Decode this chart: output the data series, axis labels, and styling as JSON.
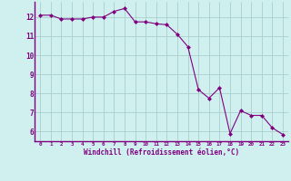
{
  "x": [
    0,
    1,
    2,
    3,
    4,
    5,
    6,
    7,
    8,
    9,
    10,
    11,
    12,
    13,
    14,
    15,
    16,
    17,
    18,
    19,
    20,
    21,
    22,
    23
  ],
  "y": [
    12.1,
    12.1,
    11.9,
    11.9,
    11.9,
    12.0,
    12.0,
    12.3,
    12.45,
    11.75,
    11.75,
    11.65,
    11.6,
    11.1,
    10.45,
    8.2,
    7.75,
    8.3,
    5.9,
    7.1,
    6.85,
    6.85,
    6.2,
    5.85
  ],
  "line_color": "#800080",
  "marker": "D",
  "marker_size": 2,
  "bg_color": "#cff0ee",
  "grid_color": "#aacfcd",
  "xlabel": "Windchill (Refroidissement éolien,°C)",
  "xlabel_color": "#800080",
  "tick_color": "#800080",
  "spine_color": "#800080",
  "ylim": [
    5.5,
    12.8
  ],
  "xlim": [
    -0.5,
    23.5
  ],
  "yticks": [
    6,
    7,
    8,
    9,
    10,
    11,
    12
  ],
  "xticks": [
    0,
    1,
    2,
    3,
    4,
    5,
    6,
    7,
    8,
    9,
    10,
    11,
    12,
    13,
    14,
    15,
    16,
    17,
    18,
    19,
    20,
    21,
    22,
    23
  ]
}
